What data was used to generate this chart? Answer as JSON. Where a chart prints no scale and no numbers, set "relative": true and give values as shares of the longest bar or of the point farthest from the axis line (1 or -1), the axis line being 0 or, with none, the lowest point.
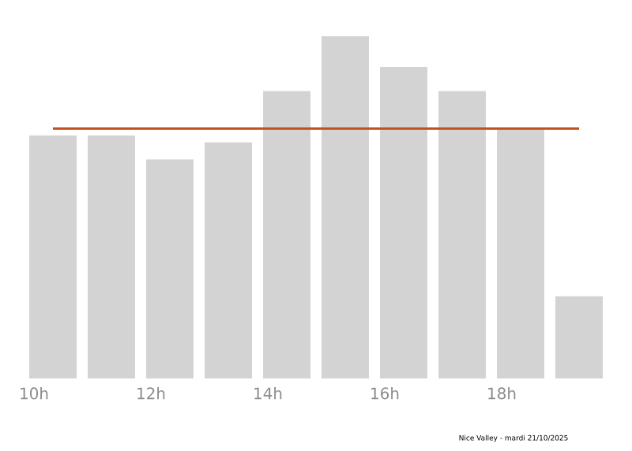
{
  "chart_data": {
    "type": "bar",
    "relative": true,
    "categories": [
      "10h",
      null,
      "12h",
      null,
      "14h",
      null,
      "16h",
      null,
      "18h",
      null
    ],
    "values": [
      0.71,
      0.71,
      0.64,
      0.69,
      0.84,
      1,
      0.91,
      0.84,
      0.73,
      0.24
    ],
    "color": "#d3d3d3",
    "ref_lines": [
      {
        "axis": "y",
        "value": 0.73,
        "color": "#c2501e"
      }
    ],
    "annotations": [
      "Nice Valley - mardi 21/10/2025"
    ]
  }
}
